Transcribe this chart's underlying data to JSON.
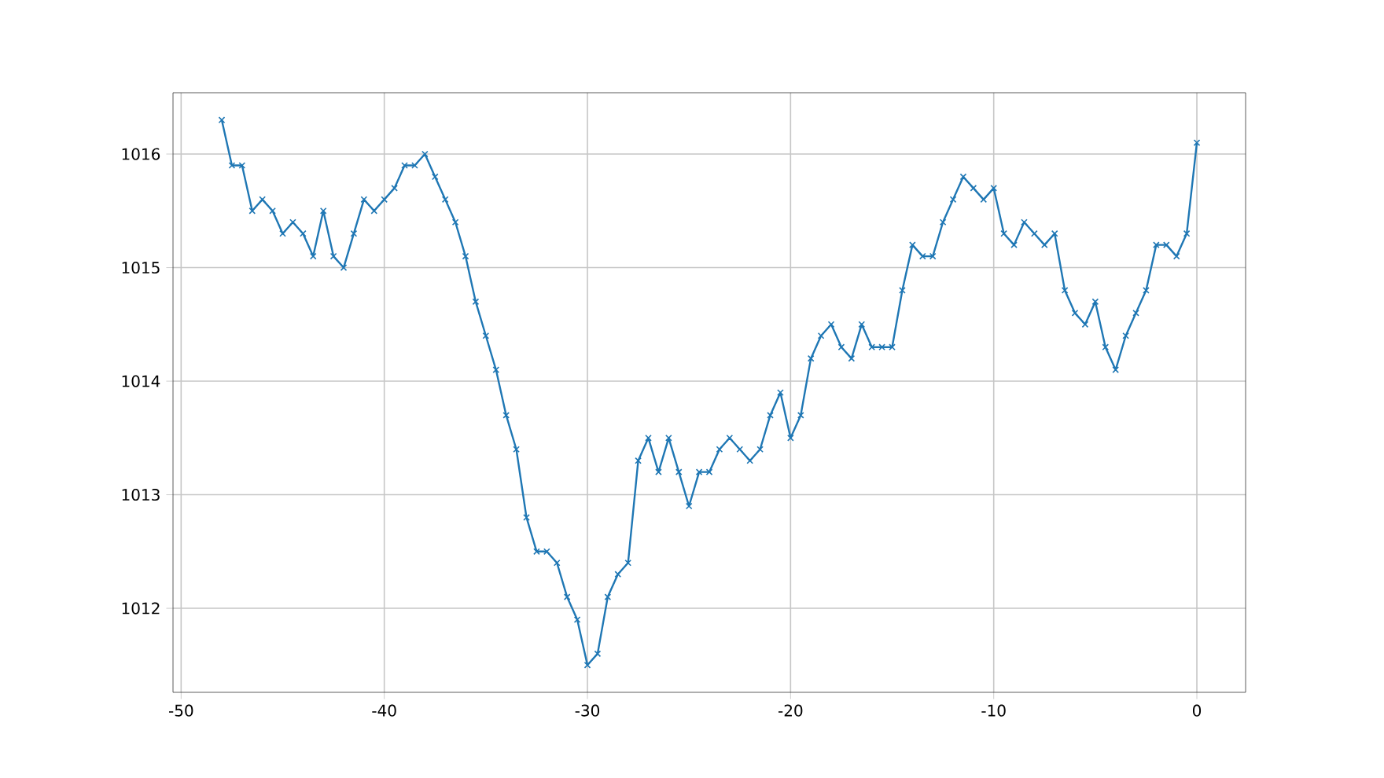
{
  "chart_data": {
    "type": "line",
    "x": [
      -48,
      -47.5,
      -47,
      -46.5,
      -46,
      -45.5,
      -45,
      -44.5,
      -44,
      -43.5,
      -43,
      -42.5,
      -42,
      -41.5,
      -41,
      -40.5,
      -40,
      -39.5,
      -39,
      -38.5,
      -38,
      -37.5,
      -37,
      -36.5,
      -36,
      -35.5,
      -35,
      -34.5,
      -34,
      -33.5,
      -33,
      -32.5,
      -32,
      -31.5,
      -31,
      -30.5,
      -30,
      -29.5,
      -29,
      -28.5,
      -28,
      -27.5,
      -27,
      -26.5,
      -26,
      -25.5,
      -25,
      -24.5,
      -24,
      -23.5,
      -23,
      -22.5,
      -22,
      -21.5,
      -21,
      -20.5,
      -20,
      -19.5,
      -19,
      -18.5,
      -18,
      -17.5,
      -17,
      -16.5,
      -16,
      -15.5,
      -15,
      -14.5,
      -14,
      -13.5,
      -13,
      -12.5,
      -12,
      -11.5,
      -11,
      -10.5,
      -10,
      -9.5,
      -9,
      -8.5,
      -8,
      -7.5,
      -7,
      -6.5,
      -6,
      -5.5,
      -5,
      -4.5,
      -4,
      -3.5,
      -3,
      -2.5,
      -2,
      -1.5,
      -1,
      -0.5,
      0
    ],
    "series": [
      {
        "color": "#1f77b4",
        "values": [
          1016.3,
          1015.9,
          1015.9,
          1015.5,
          1015.6,
          1015.5,
          1015.3,
          1015.4,
          1015.3,
          1015.1,
          1015.5,
          1015.1,
          1015.0,
          1015.3,
          1015.6,
          1015.5,
          1015.6,
          1015.7,
          1015.9,
          1015.9,
          1016.0,
          1015.8,
          1015.6,
          1015.4,
          1015.1,
          1014.7,
          1014.4,
          1014.1,
          1013.7,
          1013.4,
          1012.8,
          1012.5,
          1012.5,
          1012.4,
          1012.1,
          1011.9,
          1011.5,
          1011.6,
          1012.1,
          1012.3,
          1012.4,
          1013.3,
          1013.5,
          1013.2,
          1013.5,
          1013.2,
          1012.9,
          1013.2,
          1013.2,
          1013.4,
          1013.5,
          1013.4,
          1013.3,
          1013.4,
          1013.7,
          1013.9,
          1013.5,
          1013.7,
          1014.2,
          1014.4,
          1014.5,
          1014.3,
          1014.2,
          1014.5,
          1014.3,
          1014.3,
          1014.3,
          1014.8,
          1015.2,
          1015.1,
          1015.1,
          1015.4,
          1015.6,
          1015.8,
          1015.7,
          1015.6,
          1015.7,
          1015.3,
          1015.2,
          1015.4,
          1015.3,
          1015.2,
          1015.3,
          1014.8,
          1014.6,
          1014.5,
          1014.7,
          1014.3,
          1014.1,
          1014.4,
          1014.6,
          1014.8,
          1015.2,
          1015.2,
          1015.1,
          1015.3,
          1016.1
        ]
      }
    ],
    "xlim": [
      -50.4,
      2.4
    ],
    "ylim": [
      1011.26,
      1016.54
    ],
    "xticks": [
      -50,
      -40,
      -30,
      -20,
      -10,
      0
    ],
    "yticks": [
      1012,
      1013,
      1014,
      1015,
      1016
    ],
    "grid": true,
    "marker": "cross",
    "line_style": "solid"
  }
}
